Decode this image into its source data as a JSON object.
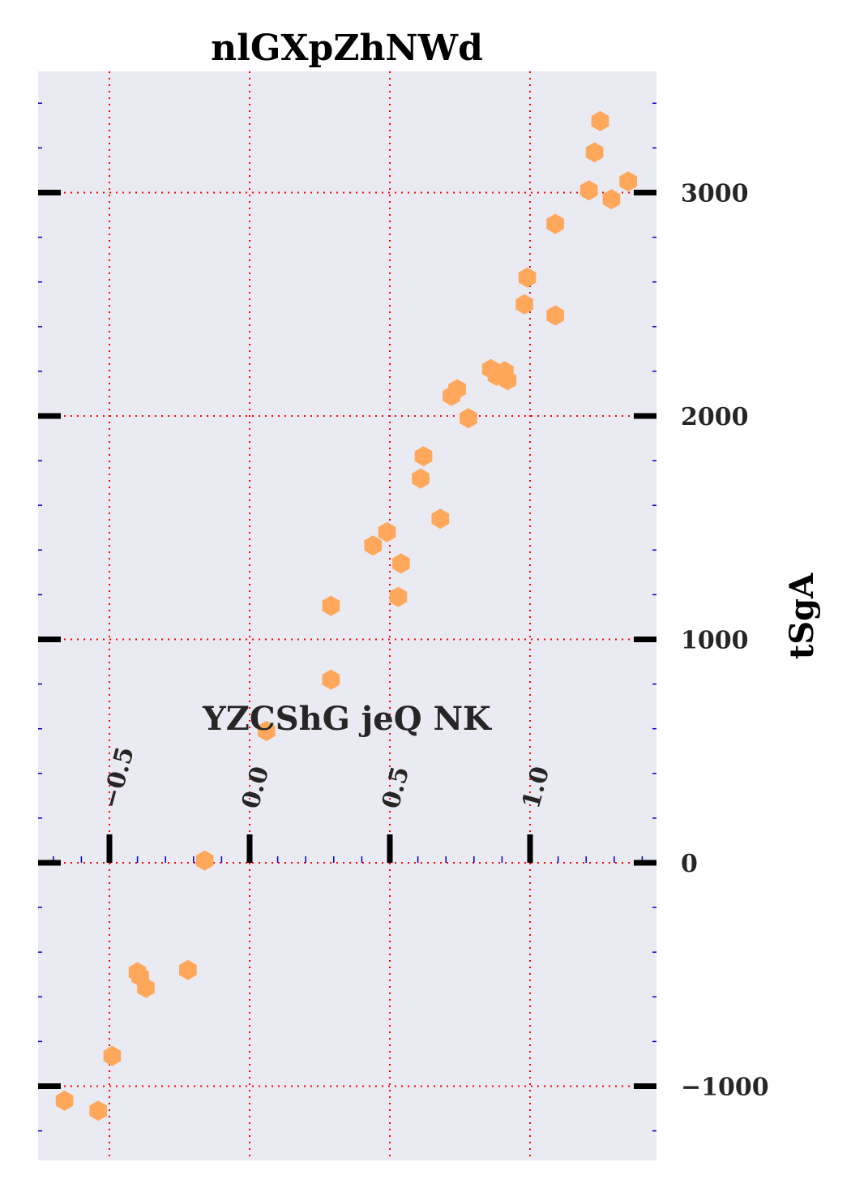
{
  "chart_data": {
    "type": "scatter",
    "title": "nlGXpZhNWd",
    "xlabel": "YZCShG jeQ NK",
    "ylabel": "tSgA",
    "xlim": [
      -0.76,
      1.45
    ],
    "ylim": [
      -1330,
      3530
    ],
    "xticks": [
      -0.5,
      0.0,
      0.5,
      1.0
    ],
    "xtick_labels": [
      "−0.5",
      "0.0",
      "0.5",
      "1.0"
    ],
    "yticks": [
      -1000,
      0,
      1000,
      2000,
      3000
    ],
    "ytick_labels": [
      "−1000",
      "0",
      "1000",
      "2000",
      "3000"
    ],
    "x_axis_position": "inside, at y = 0 (ticks above the axis line, labels rotated)",
    "y_axis_position": "right",
    "grid": true,
    "grid_style": "dotted",
    "colors": {
      "background": "#eaeaf2",
      "marker": "#ffa85c",
      "grid": "#ff0000",
      "minor_tick": "#0000cc",
      "major_tick": "#000000"
    },
    "marker": "hexagon",
    "points": [
      {
        "x": -0.66,
        "y": -1065
      },
      {
        "x": -0.54,
        "y": -1110
      },
      {
        "x": -0.49,
        "y": -865
      },
      {
        "x": -0.4,
        "y": -490
      },
      {
        "x": -0.39,
        "y": -510
      },
      {
        "x": -0.37,
        "y": -560
      },
      {
        "x": -0.22,
        "y": -480
      },
      {
        "x": -0.16,
        "y": 10
      },
      {
        "x": 0.06,
        "y": 590
      },
      {
        "x": 0.29,
        "y": 820
      },
      {
        "x": 0.29,
        "y": 1150
      },
      {
        "x": 0.44,
        "y": 1420
      },
      {
        "x": 0.49,
        "y": 1480
      },
      {
        "x": 0.53,
        "y": 1190
      },
      {
        "x": 0.54,
        "y": 1340
      },
      {
        "x": 0.61,
        "y": 1720
      },
      {
        "x": 0.62,
        "y": 1820
      },
      {
        "x": 0.68,
        "y": 1540
      },
      {
        "x": 0.72,
        "y": 2090
      },
      {
        "x": 0.74,
        "y": 2120
      },
      {
        "x": 0.78,
        "y": 1990
      },
      {
        "x": 0.86,
        "y": 2210
      },
      {
        "x": 0.88,
        "y": 2180
      },
      {
        "x": 0.91,
        "y": 2200
      },
      {
        "x": 0.92,
        "y": 2160
      },
      {
        "x": 0.98,
        "y": 2500
      },
      {
        "x": 0.99,
        "y": 2620
      },
      {
        "x": 1.09,
        "y": 2450
      },
      {
        "x": 1.09,
        "y": 2860
      },
      {
        "x": 1.21,
        "y": 3010
      },
      {
        "x": 1.23,
        "y": 3180
      },
      {
        "x": 1.25,
        "y": 3320
      },
      {
        "x": 1.29,
        "y": 2970
      },
      {
        "x": 1.35,
        "y": 3050
      }
    ]
  }
}
